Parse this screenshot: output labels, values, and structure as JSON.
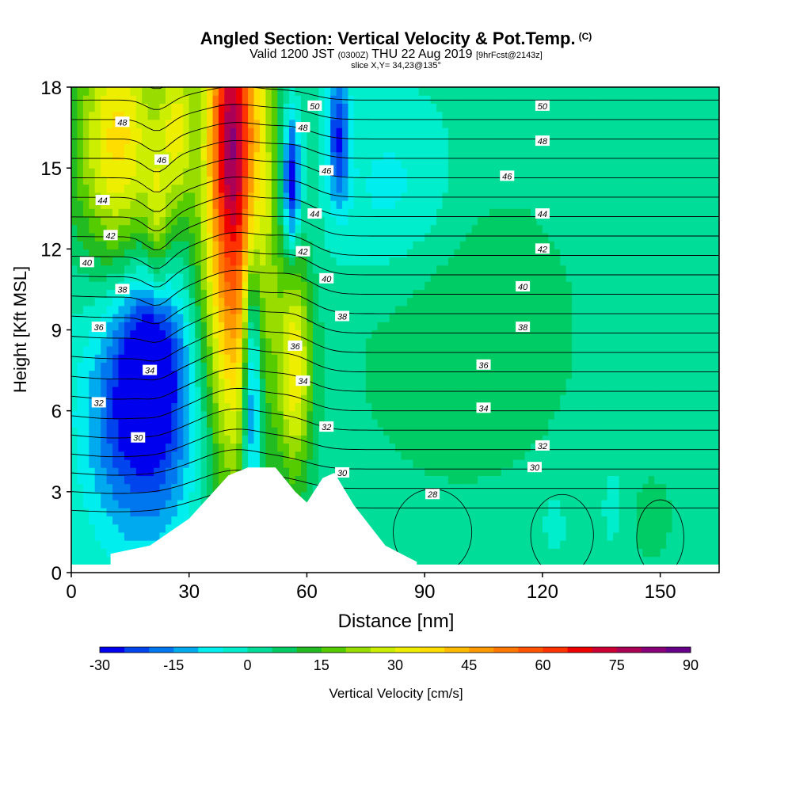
{
  "title": {
    "main": "Angled Section: Vertical Velocity & Pot.Temp.",
    "unit_tag": "(C)",
    "valid_prefix": "Valid 1200 JST",
    "utc": "(0300Z)",
    "valid_date": "THU 22 Aug 2019",
    "forecast": "[9hrFcst@2143z]",
    "slice": "slice X,Y= 34,23@135°"
  },
  "chart_data": {
    "type": "heatmap",
    "xlabel": "Distance [nm]",
    "ylabel": "Height [Kft MSL]",
    "xlim": [
      0,
      165
    ],
    "ylim": [
      0,
      18
    ],
    "xticks": [
      0,
      30,
      60,
      90,
      120,
      150
    ],
    "yticks": [
      0,
      3,
      6,
      9,
      12,
      15,
      18
    ],
    "colorbar": {
      "label": "Vertical Velocity [cm/s]",
      "ticks": [
        -30,
        -15,
        0,
        15,
        30,
        45,
        60,
        75,
        90
      ],
      "bins": [
        -30,
        -25,
        -20,
        -15,
        -10,
        -5,
        0,
        5,
        10,
        15,
        20,
        25,
        30,
        35,
        40,
        45,
        50,
        55,
        60,
        65,
        70,
        75,
        80,
        85,
        90
      ],
      "colors": [
        "#0000ee",
        "#0044ee",
        "#0077ee",
        "#00aaee",
        "#00eeee",
        "#00eecc",
        "#00dd99",
        "#00cc66",
        "#22bb22",
        "#55cc00",
        "#99dd00",
        "#ccee00",
        "#eeee00",
        "#ffdd00",
        "#ffbb00",
        "#ff9900",
        "#ff7700",
        "#ff5500",
        "#ff3300",
        "#ee0000",
        "#cc0033",
        "#aa0055",
        "#880077",
        "#660088"
      ]
    },
    "theta_labels": [
      {
        "v": 50,
        "x": 62,
        "y": 17.3
      },
      {
        "v": 50,
        "x": 120,
        "y": 17.3
      },
      {
        "v": 48,
        "x": 13,
        "y": 16.7
      },
      {
        "v": 48,
        "x": 59,
        "y": 16.5
      },
      {
        "v": 48,
        "x": 120,
        "y": 16.0
      },
      {
        "v": 46,
        "x": 23,
        "y": 15.3
      },
      {
        "v": 46,
        "x": 65,
        "y": 14.9
      },
      {
        "v": 46,
        "x": 111,
        "y": 14.7
      },
      {
        "v": 44,
        "x": 8,
        "y": 13.8
      },
      {
        "v": 44,
        "x": 62,
        "y": 13.3
      },
      {
        "v": 44,
        "x": 120,
        "y": 13.3
      },
      {
        "v": 42,
        "x": 10,
        "y": 12.5
      },
      {
        "v": 42,
        "x": 59,
        "y": 11.9
      },
      {
        "v": 42,
        "x": 120,
        "y": 12.0
      },
      {
        "v": 40,
        "x": 4,
        "y": 11.5
      },
      {
        "v": 40,
        "x": 65,
        "y": 10.9
      },
      {
        "v": 40,
        "x": 115,
        "y": 10.6
      },
      {
        "v": 38,
        "x": 13,
        "y": 10.5
      },
      {
        "v": 38,
        "x": 69,
        "y": 9.5
      },
      {
        "v": 38,
        "x": 115,
        "y": 9.1
      },
      {
        "v": 36,
        "x": 7,
        "y": 9.1
      },
      {
        "v": 36,
        "x": 57,
        "y": 8.4
      },
      {
        "v": 36,
        "x": 105,
        "y": 7.7
      },
      {
        "v": 34,
        "x": 20,
        "y": 7.5
      },
      {
        "v": 34,
        "x": 59,
        "y": 7.1
      },
      {
        "v": 34,
        "x": 105,
        "y": 6.1
      },
      {
        "v": 32,
        "x": 7,
        "y": 6.3
      },
      {
        "v": 32,
        "x": 65,
        "y": 5.4
      },
      {
        "v": 32,
        "x": 120,
        "y": 4.7
      },
      {
        "v": 30,
        "x": 17,
        "y": 5.0
      },
      {
        "v": 30,
        "x": 69,
        "y": 3.7
      },
      {
        "v": 30,
        "x": 118,
        "y": 3.9
      },
      {
        "v": 28,
        "x": 92,
        "y": 2.9
      }
    ],
    "terrain": [
      [
        0,
        0.0
      ],
      [
        10,
        0.3
      ],
      [
        10,
        0.7
      ],
      [
        20,
        1.0
      ],
      [
        30,
        2.0
      ],
      [
        40,
        3.6
      ],
      [
        45,
        3.9
      ],
      [
        52,
        3.9
      ],
      [
        57,
        3.0
      ],
      [
        60,
        2.6
      ],
      [
        64,
        3.5
      ],
      [
        67,
        3.7
      ],
      [
        72,
        2.5
      ],
      [
        80,
        1.0
      ],
      [
        88,
        0.4
      ],
      [
        88,
        0.0
      ]
    ]
  }
}
